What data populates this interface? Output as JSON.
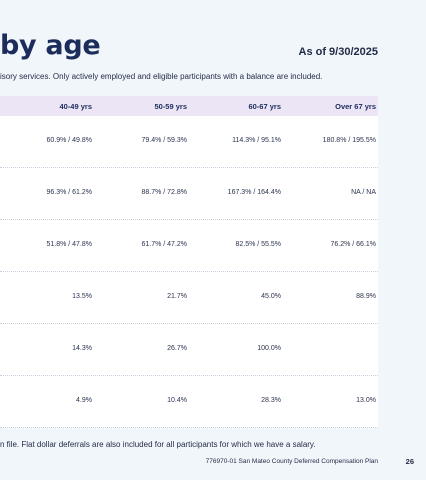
{
  "header": {
    "title": "by age",
    "as_of": "As of 9/30/2025",
    "intro": "isory services. Only actively employed and eligible participants with a balance are included."
  },
  "table": {
    "columns": [
      "40-49 yrs",
      "50-59 yrs",
      "60-67 yrs",
      "Over 67 yrs"
    ],
    "rows": [
      [
        "60.9% / 49.8%",
        "79.4% / 59.3%",
        "114.3% / 95.1%",
        "180.8% / 195.5%"
      ],
      [
        "96.3% / 61.2%",
        "88.7% / 72.8%",
        "167.3% / 164.4%",
        "NA / NA"
      ],
      [
        "51.8% / 47.8%",
        "61.7% / 47.2%",
        "82.5% / 55.5%",
        "76.2% / 66.1%"
      ],
      [
        "13.5%",
        "21.7%",
        "45.0%",
        "88.9%"
      ],
      [
        "14.3%",
        "26.7%",
        "100.0%",
        ""
      ],
      [
        "4.9%",
        "10.4%",
        "28.3%",
        "13.0%"
      ]
    ]
  },
  "footnote": "n file. Flat dollar deferrals are also included for all participants for which we have a salary.",
  "footer": {
    "plan": "776970-01 San Mateo County Deferred Compensation Plan",
    "page": "26"
  }
}
